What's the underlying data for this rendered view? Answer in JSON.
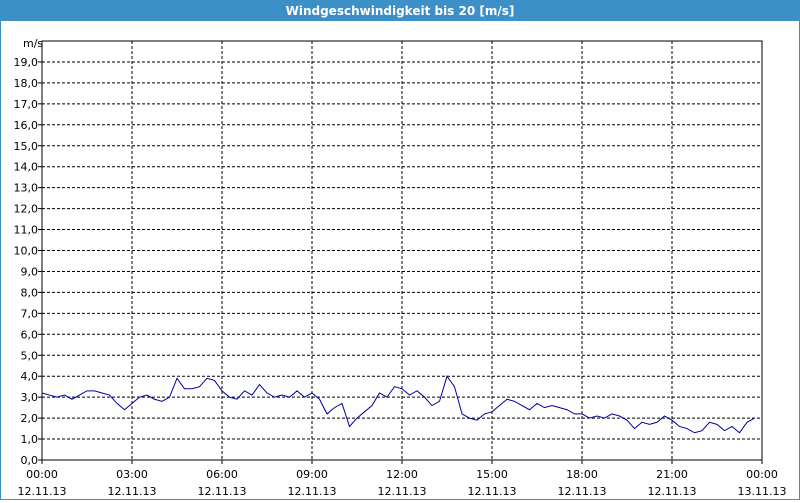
{
  "chart_data": {
    "type": "line",
    "title": "Windgeschwindigkeit bis 20 [m/s]",
    "y_label": "m/s",
    "x": [
      0,
      0.25,
      0.5,
      0.75,
      1,
      1.25,
      1.5,
      1.75,
      2,
      2.25,
      2.5,
      2.75,
      3,
      3.25,
      3.5,
      3.75,
      4,
      4.25,
      4.5,
      4.75,
      5,
      5.25,
      5.5,
      5.75,
      6,
      6.25,
      6.5,
      6.75,
      7,
      7.25,
      7.5,
      7.75,
      8,
      8.25,
      8.5,
      8.75,
      9,
      9.25,
      9.5,
      9.75,
      10,
      10.25,
      10.5,
      10.75,
      11,
      11.25,
      11.5,
      11.75,
      12,
      12.25,
      12.5,
      12.75,
      13,
      13.25,
      13.5,
      13.75,
      14,
      14.25,
      14.5,
      14.75,
      15,
      15.25,
      15.5,
      15.75,
      16,
      16.25,
      16.5,
      16.75,
      17,
      17.25,
      17.5,
      17.75,
      18,
      18.25,
      18.5,
      18.75,
      19,
      19.25,
      19.5,
      19.75,
      20,
      20.25,
      20.5,
      20.75,
      21,
      21.25,
      21.5,
      21.75,
      22,
      22.25,
      22.5,
      22.75,
      23,
      23.25,
      23.5,
      23.75
    ],
    "series": [
      {
        "name": "Windgeschwindigkeit",
        "color": "#0000a0",
        "values": [
          3.2,
          3.1,
          3.0,
          3.1,
          2.9,
          3.1,
          3.3,
          3.3,
          3.2,
          3.1,
          2.7,
          2.4,
          2.7,
          3.0,
          3.1,
          2.9,
          2.8,
          3.0,
          3.9,
          3.4,
          3.4,
          3.5,
          3.9,
          3.8,
          3.3,
          3.0,
          2.9,
          3.3,
          3.1,
          3.6,
          3.2,
          3.0,
          3.1,
          3.0,
          3.3,
          3.0,
          3.2,
          2.9,
          2.2,
          2.5,
          2.7,
          1.6,
          2.0,
          2.3,
          2.6,
          3.2,
          3.0,
          3.5,
          3.4,
          3.1,
          3.3,
          3.0,
          2.6,
          2.8,
          4.0,
          3.5,
          2.2,
          2.0,
          1.9,
          2.2,
          2.3,
          2.6,
          2.9,
          2.8,
          2.6,
          2.4,
          2.7,
          2.5,
          2.6,
          2.5,
          2.4,
          2.2,
          2.2,
          2.0,
          2.1,
          2.0,
          2.2,
          2.1,
          1.9,
          1.5,
          1.8,
          1.7,
          1.8,
          2.1,
          1.9,
          1.6,
          1.5,
          1.3,
          1.4,
          1.8,
          1.7,
          1.4,
          1.6,
          1.3,
          1.8,
          2.0
        ]
      }
    ],
    "xlim": [
      0,
      24
    ],
    "xticks": [
      {
        "value": 0,
        "label": "00:00",
        "date": "12.11.13"
      },
      {
        "value": 3,
        "label": "03:00",
        "date": "12.11.13"
      },
      {
        "value": 6,
        "label": "06:00",
        "date": "12.11.13"
      },
      {
        "value": 9,
        "label": "09:00",
        "date": "12.11.13"
      },
      {
        "value": 12,
        "label": "12:00",
        "date": "12.11.13"
      },
      {
        "value": 15,
        "label": "15:00",
        "date": "12.11.13"
      },
      {
        "value": 18,
        "label": "18:00",
        "date": "12.11.13"
      },
      {
        "value": 21,
        "label": "21:00",
        "date": "12.11.13"
      },
      {
        "value": 24,
        "label": "00:00",
        "date": "13.11.13"
      }
    ],
    "ylim": [
      0,
      20
    ],
    "yticks": [
      {
        "value": 0,
        "label": "0,0"
      },
      {
        "value": 1,
        "label": "1,0"
      },
      {
        "value": 2,
        "label": "2,0"
      },
      {
        "value": 3,
        "label": "3,0"
      },
      {
        "value": 4,
        "label": "4,0"
      },
      {
        "value": 5,
        "label": "5,0"
      },
      {
        "value": 6,
        "label": "6,0"
      },
      {
        "value": 7,
        "label": "7,0"
      },
      {
        "value": 8,
        "label": "8,0"
      },
      {
        "value": 9,
        "label": "9,0"
      },
      {
        "value": 10,
        "label": "10,0"
      },
      {
        "value": 11,
        "label": "11,0"
      },
      {
        "value": 12,
        "label": "12,0"
      },
      {
        "value": 13,
        "label": "13,0"
      },
      {
        "value": 14,
        "label": "14,0"
      },
      {
        "value": 15,
        "label": "15,0"
      },
      {
        "value": 16,
        "label": "16,0"
      },
      {
        "value": 17,
        "label": "17,0"
      },
      {
        "value": 18,
        "label": "18,0"
      },
      {
        "value": 19,
        "label": "19,0"
      }
    ],
    "grid": true
  }
}
